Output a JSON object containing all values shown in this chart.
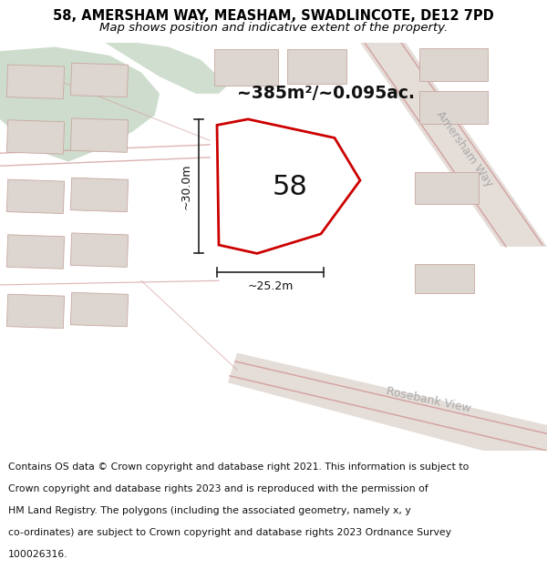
{
  "title_line1": "58, AMERSHAM WAY, MEASHAM, SWADLINCOTE, DE12 7PD",
  "title_line2": "Map shows position and indicative extent of the property.",
  "footer_text": "Contains OS data © Crown copyright and database right 2021. This information is subject to Crown copyright and database rights 2023 and is reproduced with the permission of HM Land Registry. The polygons (including the associated geometry, namely x, y co-ordinates) are subject to Crown copyright and database rights 2023 Ordnance Survey 100026316.",
  "area_label": "~385m²/~0.095ac.",
  "width_label": "~25.2m",
  "height_label": "~30.0m",
  "property_number": "58",
  "map_bg": "#ede8e3",
  "green_color": "#cddccc",
  "green_color2": "#bdd0bc",
  "plot_fill": "#ffffff",
  "plot_edge": "#cc0000",
  "road_bg": "#e8e2dc",
  "road_line_color": "#d4a0a0",
  "building_fill": "#ddd8d5",
  "building_edge": "#c8a8a8",
  "dim_line_color": "#222222",
  "road_label_color": "#aaaaaa",
  "title_fontsize": 10.5,
  "subtitle_fontsize": 9.5,
  "footer_fontsize": 7.8,
  "white": "#ffffff",
  "footer_line1": "Contains OS data © Crown copyright and database right 2021. This information is subject to",
  "footer_line2": "Crown copyright and database rights 2023 and is reproduced with the permission of",
  "footer_line3": "HM Land Registry. The polygons (including the associated geometry, namely x, y",
  "footer_line4": "co-ordinates) are subject to Crown copyright and database rights 2023 Ordnance Survey",
  "footer_line5": "100026316."
}
